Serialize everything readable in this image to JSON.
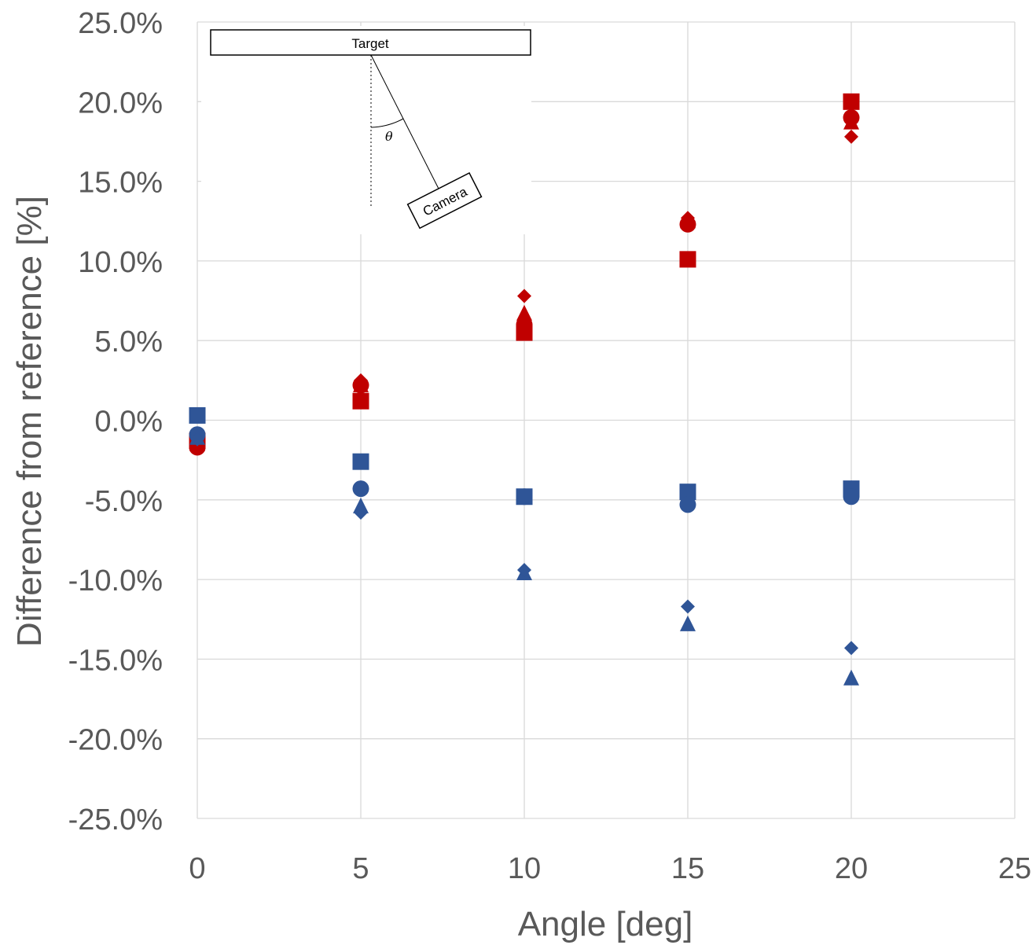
{
  "chart_data": {
    "type": "scatter",
    "xlabel": "Angle [deg]",
    "ylabel": "Difference from reference [%]",
    "xlim": [
      0,
      25
    ],
    "ylim": [
      -25,
      25
    ],
    "x_ticks": [
      "0",
      "5",
      "10",
      "15",
      "20",
      "25"
    ],
    "y_ticks": [
      "25.0%",
      "20.0%",
      "15.0%",
      "10.0%",
      "5.0%",
      "0.0%",
      "-5.0%",
      "-10.0%",
      "-15.0%",
      "-20.0%",
      "-25.0%"
    ],
    "grid": true,
    "legend": "none",
    "colors": {
      "red": "#c00000",
      "blue": "#2f5597",
      "grid": "#d9d9d9",
      "text": "#595959"
    },
    "series": [
      {
        "color": "red",
        "marker": "square",
        "x": [
          0,
          5,
          10,
          15,
          20
        ],
        "y": [
          -1.3,
          1.2,
          5.5,
          10.1,
          20.0
        ]
      },
      {
        "color": "red",
        "marker": "circle",
        "x": [
          0,
          5,
          10,
          15,
          20
        ],
        "y": [
          -1.7,
          2.2,
          6.0,
          12.3,
          19.0
        ]
      },
      {
        "color": "red",
        "marker": "triangle",
        "x": [
          0,
          5,
          10,
          15,
          20
        ],
        "y": [
          -1.5,
          2.2,
          6.7,
          12.5,
          18.7
        ]
      },
      {
        "color": "red",
        "marker": "diamond",
        "x": [
          0,
          5,
          10,
          15,
          20
        ],
        "y": [
          -1.4,
          2.5,
          7.8,
          12.7,
          17.8
        ]
      },
      {
        "color": "blue",
        "marker": "square",
        "x": [
          0,
          5,
          10,
          15,
          20
        ],
        "y": [
          0.3,
          -2.6,
          -4.8,
          -4.5,
          -4.3
        ]
      },
      {
        "color": "blue",
        "marker": "circle",
        "x": [
          0,
          5,
          10,
          15,
          20
        ],
        "y": [
          -0.9,
          -4.3,
          -4.8,
          -5.3,
          -4.8
        ]
      },
      {
        "color": "blue",
        "marker": "triangle",
        "x": [
          0,
          5,
          10,
          15,
          20
        ],
        "y": [
          -1.1,
          -5.4,
          -9.6,
          -12.8,
          -16.2
        ]
      },
      {
        "color": "blue",
        "marker": "diamond",
        "x": [
          0,
          5,
          10,
          15,
          20
        ],
        "y": [
          -1.2,
          -5.8,
          -9.4,
          -11.7,
          -14.3
        ]
      }
    ],
    "inset": {
      "target_label": "Target",
      "camera_label": "Camera",
      "angle_label": "θ"
    }
  }
}
